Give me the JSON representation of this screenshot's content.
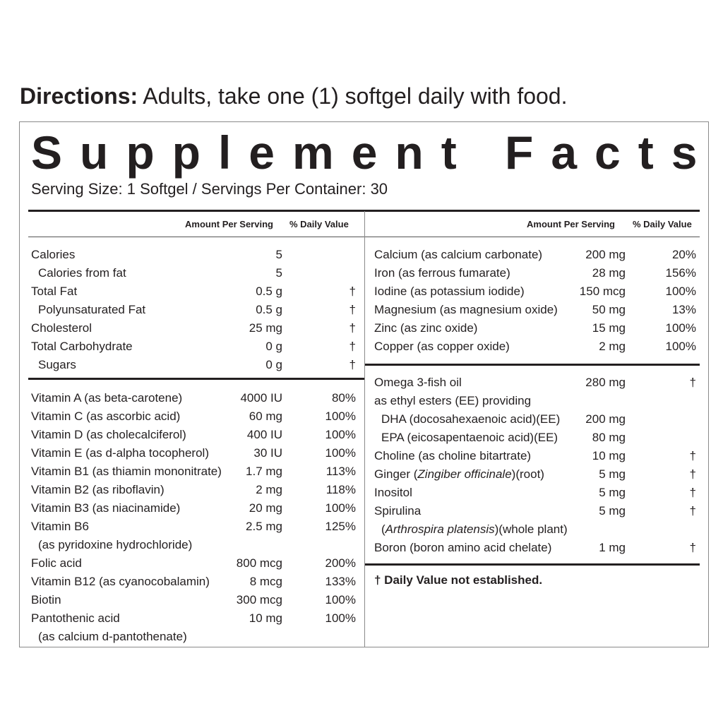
{
  "directions": {
    "label": "Directions:",
    "text": " Adults, take one (1) softgel daily with food."
  },
  "panel": {
    "title": "Supplement Facts",
    "serving_line": "Serving Size: 1 Softgel  /  Servings Per Container: 30",
    "col_amount": "Amount Per Serving",
    "col_dv": "% Daily Value"
  },
  "left_block1": [
    {
      "name": "Calories",
      "amount": "5",
      "dv": ""
    },
    {
      "name": "Calories from fat",
      "amount": "5",
      "dv": "",
      "indent": true
    },
    {
      "name": "Total Fat",
      "amount": "0.5 g",
      "dv": "†"
    },
    {
      "name": "Polyunsaturated Fat",
      "amount": "0.5 g",
      "dv": "†",
      "indent": true
    },
    {
      "name": "Cholesterol",
      "amount": "25 mg",
      "dv": "†"
    },
    {
      "name": "Total Carbohydrate",
      "amount": "0 g",
      "dv": "†"
    },
    {
      "name": "Sugars",
      "amount": "0 g",
      "dv": "†",
      "indent": true
    }
  ],
  "left_block2": [
    {
      "name": "Vitamin A (as beta-carotene)",
      "amount": "4000 IU",
      "dv": "80%"
    },
    {
      "name": "Vitamin C (as ascorbic acid)",
      "amount": "60 mg",
      "dv": "100%"
    },
    {
      "name": "Vitamin D (as cholecalciferol)",
      "amount": "400 IU",
      "dv": "100%"
    },
    {
      "name": "Vitamin E (as d-alpha tocopherol)",
      "amount": "30 IU",
      "dv": "100%"
    },
    {
      "name": "Vitamin B1 (as thiamin mononitrate)",
      "amount": "1.7 mg",
      "dv": "113%"
    },
    {
      "name": "Vitamin B2 (as riboflavin)",
      "amount": "2 mg",
      "dv": "118%"
    },
    {
      "name": "Vitamin B3 (as niacinamide)",
      "amount": "20 mg",
      "dv": "100%"
    },
    {
      "name": "Vitamin B6",
      "amount": "2.5 mg",
      "dv": "125%"
    },
    {
      "name": "(as pyridoxine hydrochloride)",
      "amount": "",
      "dv": "",
      "cont": true
    },
    {
      "name": "Folic acid",
      "amount": "800 mcg",
      "dv": "200%"
    },
    {
      "name": "Vitamin B12 (as cyanocobalamin)",
      "amount": "8 mcg",
      "dv": "133%"
    },
    {
      "name": "Biotin",
      "amount": "300 mcg",
      "dv": "100%"
    },
    {
      "name": "Pantothenic acid",
      "amount": "10 mg",
      "dv": "100%"
    },
    {
      "name": "(as calcium d-pantothenate)",
      "amount": "",
      "dv": "",
      "cont": true
    }
  ],
  "right_block1": [
    {
      "name": "Calcium (as calcium carbonate)",
      "amount": "200 mg",
      "dv": "20%"
    },
    {
      "name": "Iron (as ferrous fumarate)",
      "amount": "28 mg",
      "dv": "156%"
    },
    {
      "name": "Iodine (as potassium iodide)",
      "amount": "150 mcg",
      "dv": "100%"
    },
    {
      "name": "Magnesium (as magnesium oxide)",
      "amount": "50 mg",
      "dv": "13%"
    },
    {
      "name": "Zinc (as zinc oxide)",
      "amount": "15 mg",
      "dv": "100%"
    },
    {
      "name": "Copper (as copper oxide)",
      "amount": "2 mg",
      "dv": "100%"
    }
  ],
  "right_block2": [
    {
      "name": "Omega 3-fish oil",
      "amount": "280 mg",
      "dv": "†"
    },
    {
      "name": "as ethyl esters (EE) providing",
      "amount": "",
      "dv": ""
    },
    {
      "name": "DHA (docosahexaenoic acid)(EE)",
      "amount": "200 mg",
      "dv": "",
      "indent": true
    },
    {
      "name": "EPA (eicosapentaenoic acid)(EE)",
      "amount": "80 mg",
      "dv": "",
      "indent": true
    },
    {
      "name": "Choline (as choline bitartrate)",
      "amount": "10 mg",
      "dv": "†"
    },
    {
      "name": "Ginger (",
      "italic": "Zingiber officinale",
      "after": ")(root)",
      "amount": "5 mg",
      "dv": "†"
    },
    {
      "name": "Inositol",
      "amount": "5 mg",
      "dv": "†"
    },
    {
      "name": "Spirulina",
      "amount": "5 mg",
      "dv": "†"
    },
    {
      "name": "(",
      "italic": "Arthrospira platensis",
      "after": ")(whole plant)",
      "amount": "",
      "dv": "",
      "cont": true
    },
    {
      "name": "Boron (boron amino acid chelate)",
      "amount": "1 mg",
      "dv": "†"
    }
  ],
  "footnote": "† Daily Value not established."
}
